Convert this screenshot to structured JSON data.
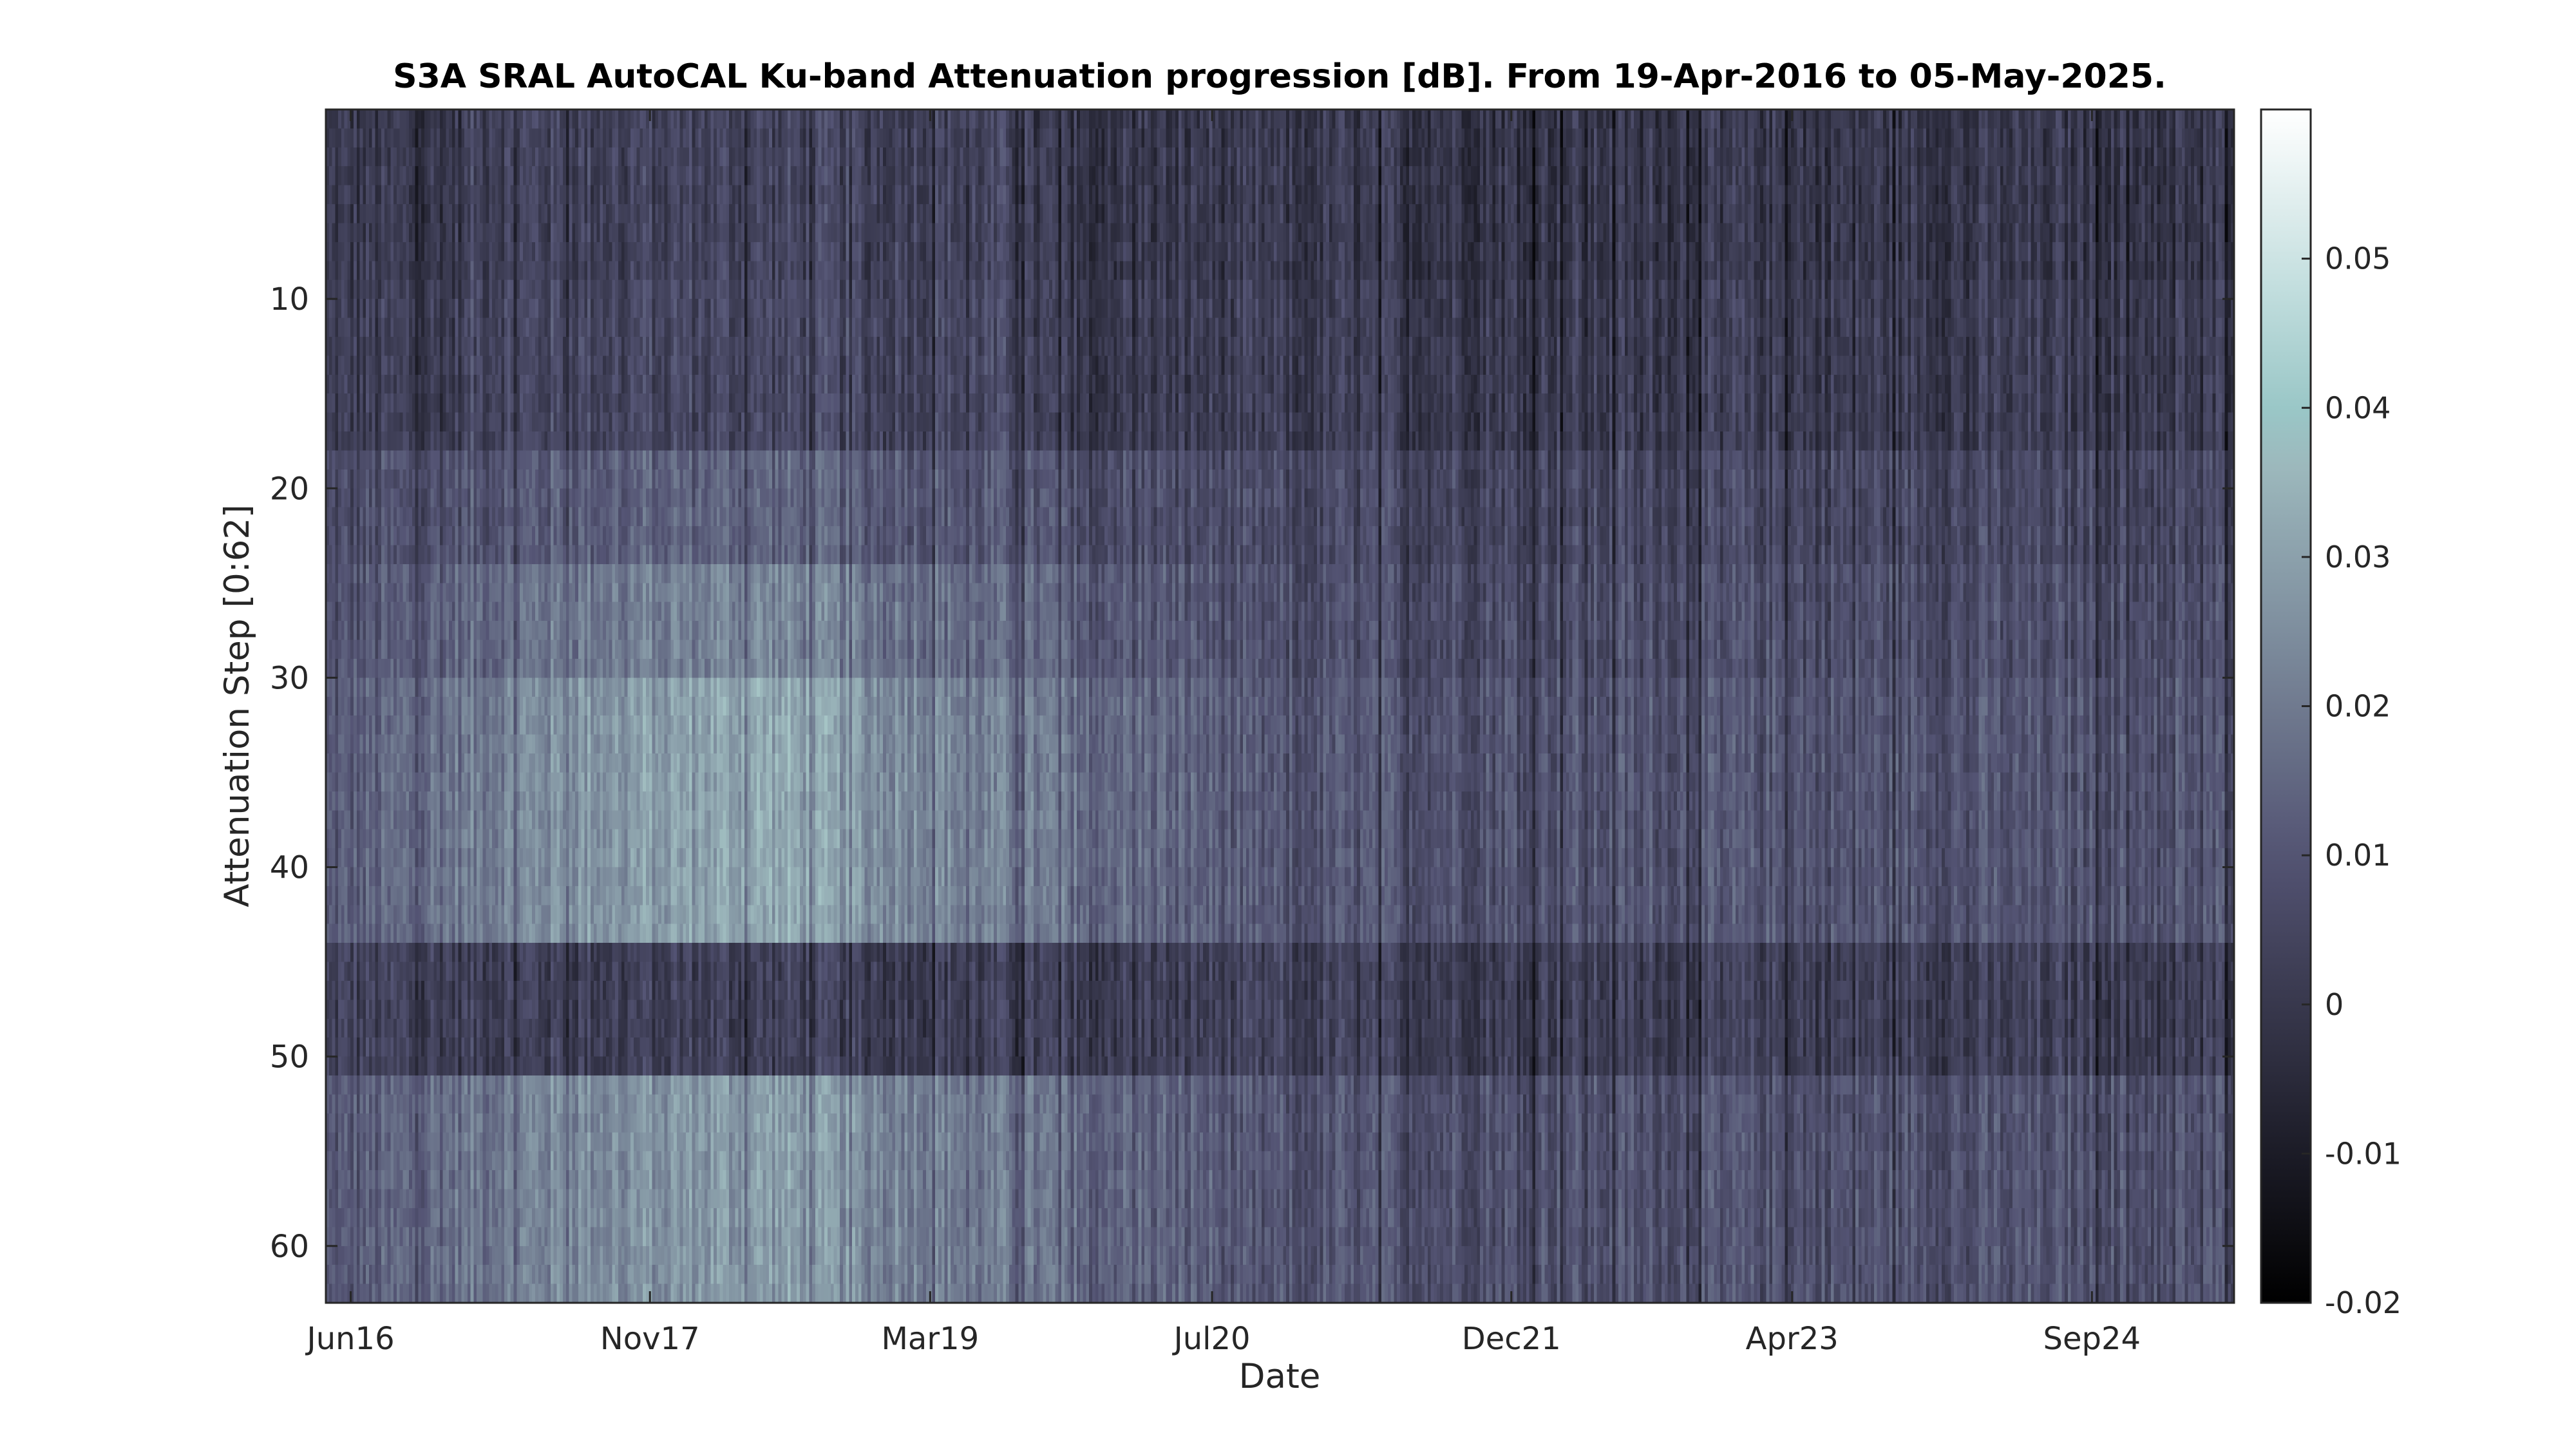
{
  "chart_data": {
    "type": "heatmap",
    "title": "S3A SRAL AutoCAL Ku-band Attenuation progression [dB]. From 19-Apr-2016 to 05-May-2025.",
    "xlabel": "Date",
    "ylabel": "Attenuation Step [0:62]",
    "x_range": [
      "2016-04-19",
      "2025-05-05"
    ],
    "x_ticks": [
      {
        "label": "Jun16",
        "date": "2016-06-01"
      },
      {
        "label": "Nov17",
        "date": "2017-11-01"
      },
      {
        "label": "Mar19",
        "date": "2019-03-01"
      },
      {
        "label": "Jul20",
        "date": "2020-07-01"
      },
      {
        "label": "Dec21",
        "date": "2021-12-01"
      },
      {
        "label": "Apr23",
        "date": "2023-04-01"
      },
      {
        "label": "Sep24",
        "date": "2024-09-01"
      }
    ],
    "y_range": [
      0,
      63
    ],
    "y_reversed": true,
    "y_ticks": [
      10,
      20,
      30,
      40,
      50,
      60
    ],
    "colorbar": {
      "colormap": "bone",
      "range": [
        -0.02,
        0.06
      ],
      "ticks": [
        -0.02,
        -0.01,
        0,
        0.01,
        0.02,
        0.03,
        0.04,
        0.05
      ],
      "tick_labels": [
        "-0.02",
        "-0.01",
        "0",
        "0.01",
        "0.02",
        "0.03",
        "0.04",
        "0.05"
      ]
    },
    "value_trend_by_date": [
      {
        "date": "2016-04-19",
        "value": 0.008
      },
      {
        "date": "2017-06-01",
        "value": 0.028
      },
      {
        "date": "2018-06-01",
        "value": 0.034
      },
      {
        "date": "2019-06-01",
        "value": 0.022
      },
      {
        "date": "2020-07-01",
        "value": 0.012
      },
      {
        "date": "2020-11-01",
        "value": 0.002
      },
      {
        "date": "2022-01-01",
        "value": 0.006
      },
      {
        "date": "2025-05-05",
        "value": 0.005
      }
    ],
    "value_by_step_band": [
      {
        "steps": [
          1,
          9
        ],
        "value": 0.0
      },
      {
        "steps": [
          10,
          18
        ],
        "value": 0.003
      },
      {
        "steps": [
          19,
          24
        ],
        "value": 0.01
      },
      {
        "steps": [
          25,
          30
        ],
        "value": 0.016
      },
      {
        "steps": [
          31,
          44
        ],
        "value": 0.022
      },
      {
        "steps": [
          45,
          51
        ],
        "value": 0.002
      },
      {
        "steps": [
          52,
          63
        ],
        "value": 0.02
      }
    ]
  }
}
